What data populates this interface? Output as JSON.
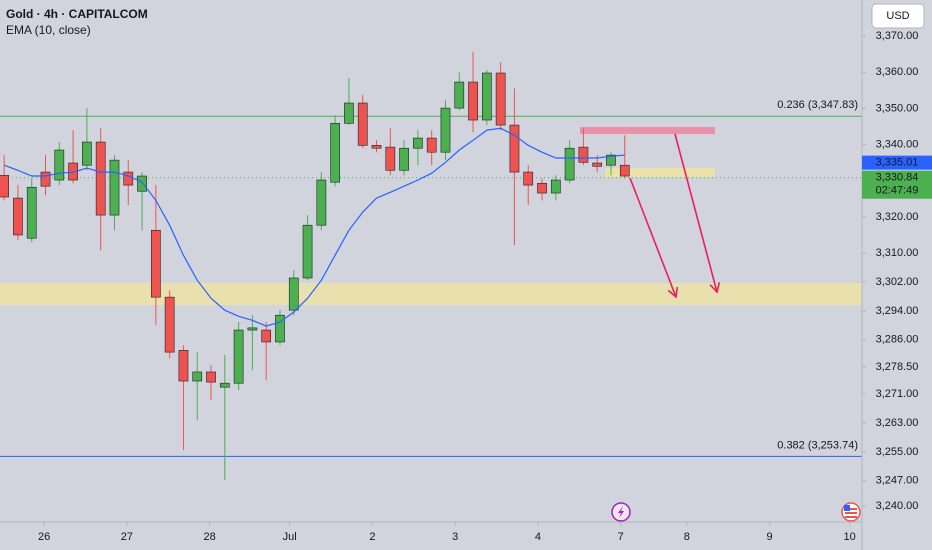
{
  "chart_data": {
    "type": "candlestick",
    "title": "Gold · 4h · CAPITALCOM",
    "indicator_label": "EMA (10, close)",
    "currency_button": "USD",
    "up_color": "#4caf50",
    "down_color": "#ef5350",
    "x": [
      0,
      1,
      2,
      3,
      4,
      5,
      6,
      7,
      8,
      9,
      10,
      11,
      12,
      13,
      14,
      15,
      16,
      17,
      18,
      19,
      20,
      21,
      22,
      23,
      24,
      25,
      26,
      27,
      28,
      29,
      30,
      31,
      32,
      33,
      34,
      35,
      36,
      37,
      38,
      39,
      40,
      41,
      42,
      43,
      44,
      45
    ],
    "open": [
      3331.5,
      3325.2,
      3314.1,
      3332.4,
      3330.2,
      3334.9,
      3334.3,
      3340.7,
      3320.5,
      3332.4,
      3327.1,
      3316.3,
      3297.8,
      3283.1,
      3274.6,
      3277.1,
      3272.9,
      3274.0,
      3288.7,
      3288.7,
      3285.4,
      3294.2,
      3303.1,
      3317.7,
      3329.6,
      3345.9,
      3351.5,
      3339.8,
      3339.3,
      3332.9,
      3339.0,
      3341.8,
      3337.9,
      3350.1,
      3357.3,
      3346.8,
      3359.8,
      3345.4,
      3332.4,
      3329.3,
      3326.6,
      3330.2,
      3339.3,
      3334.9,
      3334.3,
      3334.3
    ],
    "high": [
      3337.1,
      3328.8,
      3330.7,
      3337.1,
      3340.7,
      3344.0,
      3350.1,
      3344.5,
      3337.1,
      3335.7,
      3332.4,
      3328.8,
      3299.7,
      3284.5,
      3282.6,
      3279.0,
      3281.8,
      3290.9,
      3292.8,
      3290.9,
      3294.2,
      3305.3,
      3320.5,
      3332.4,
      3348.1,
      3358.4,
      3353.7,
      3341.2,
      3344.5,
      3341.2,
      3344.0,
      3344.0,
      3352.3,
      3360.0,
      3365.6,
      3360.6,
      3362.8,
      3355.6,
      3334.3,
      3330.7,
      3331.5,
      3341.2,
      3344.5,
      3337.1,
      3337.9,
      3342.6
    ],
    "low": [
      3324.6,
      3313.6,
      3313.0,
      3326.0,
      3328.8,
      3329.3,
      3332.9,
      3310.8,
      3316.3,
      3323.3,
      3316.3,
      3290.1,
      3280.9,
      3255.5,
      3263.8,
      3269.3,
      3247.2,
      3272.1,
      3277.6,
      3274.8,
      3284.5,
      3292.8,
      3302.5,
      3316.3,
      3328.5,
      3345.4,
      3339.0,
      3337.9,
      3331.5,
      3331.5,
      3334.3,
      3334.3,
      3335.7,
      3349.5,
      3343.4,
      3345.4,
      3344.0,
      3312.2,
      3323.3,
      3324.6,
      3324.6,
      3329.3,
      3334.3,
      3332.4,
      3331.5,
      3330.7
    ],
    "close": [
      3325.5,
      3315.0,
      3328.2,
      3328.5,
      3338.5,
      3330.2,
      3340.7,
      3320.5,
      3335.7,
      3328.8,
      3331.3,
      3297.8,
      3282.6,
      3274.6,
      3277.1,
      3274.3,
      3274.0,
      3288.7,
      3289.3,
      3285.4,
      3292.8,
      3303.1,
      3317.7,
      3330.2,
      3345.9,
      3351.5,
      3339.8,
      3339.0,
      3332.9,
      3339.0,
      3341.8,
      3337.9,
      3350.1,
      3357.3,
      3346.8,
      3359.8,
      3345.4,
      3332.4,
      3328.8,
      3326.6,
      3330.2,
      3339.0,
      3335.1,
      3334.0,
      3337.1,
      3331.3
    ],
    "ema": {
      "name": "EMA (10, close)",
      "color": "#2962ff",
      "values": [
        3334.3,
        3332.9,
        3331.3,
        3331.3,
        3332.1,
        3332.4,
        3333.5,
        3332.4,
        3332.4,
        3331.3,
        3329.6,
        3324.6,
        3317.7,
        3309.4,
        3302.5,
        3297.5,
        3294.2,
        3292.5,
        3291.4,
        3289.8,
        3290.9,
        3293.7,
        3297.5,
        3302.5,
        3309.4,
        3316.3,
        3321.3,
        3325.2,
        3326.8,
        3328.5,
        3330.2,
        3332.1,
        3335.1,
        3338.5,
        3341.2,
        3344.0,
        3344.5,
        3342.6,
        3339.8,
        3337.9,
        3336.3,
        3336.3,
        3336.3,
        3336.3,
        3336.8,
        3337.1
      ]
    },
    "levels": [
      {
        "label": "0.236 (3,347.83)",
        "value": 3347.83,
        "color": "#4caf50"
      },
      {
        "label": "0.382 (3,253.74)",
        "value": 3253.74,
        "color": "#2962ff"
      }
    ],
    "price_tags": [
      {
        "value": 3335.01,
        "label": "3,335.01",
        "color": "#2962ff"
      },
      {
        "value": 3330.84,
        "label": "3,330.84",
        "color": "#4caf50",
        "countdown": "02:47:49"
      }
    ],
    "xlim": [
      -0.3,
      62.2
    ],
    "ylim": [
      3235.6,
      3380
    ],
    "xticks": [
      {
        "value": 2.9,
        "label": "26"
      },
      {
        "value": 8.9,
        "label": "27"
      },
      {
        "value": 14.9,
        "label": "28"
      },
      {
        "value": 20.7,
        "label": "Jul"
      },
      {
        "value": 26.7,
        "label": "2"
      },
      {
        "value": 32.7,
        "label": "3"
      },
      {
        "value": 38.7,
        "label": "4"
      },
      {
        "value": 44.7,
        "label": "7"
      },
      {
        "value": 49.5,
        "label": "8"
      },
      {
        "value": 55.5,
        "label": "9"
      },
      {
        "value": 61.3,
        "label": "10"
      }
    ],
    "yticks": [
      {
        "value": 3370,
        "label": "3,370.00"
      },
      {
        "value": 3360,
        "label": "3,360.00"
      },
      {
        "value": 3350,
        "label": "3,350.00"
      },
      {
        "value": 3340,
        "label": "3,340.00"
      },
      {
        "value": 3320,
        "label": "3,320.00"
      },
      {
        "value": 3310,
        "label": "3,310.00"
      },
      {
        "value": 3302,
        "label": "3,302.00"
      },
      {
        "value": 3294,
        "label": "3,294.00"
      },
      {
        "value": 3286,
        "label": "3,286.00"
      },
      {
        "value": 3278.5,
        "label": "3,278.50"
      },
      {
        "value": 3271,
        "label": "3,271.00"
      },
      {
        "value": 3263,
        "label": "3,263.00"
      },
      {
        "value": 3255,
        "label": "3,255.00"
      },
      {
        "value": 3247,
        "label": "3,247.00"
      },
      {
        "value": 3240,
        "label": "3,240.00"
      }
    ]
  }
}
